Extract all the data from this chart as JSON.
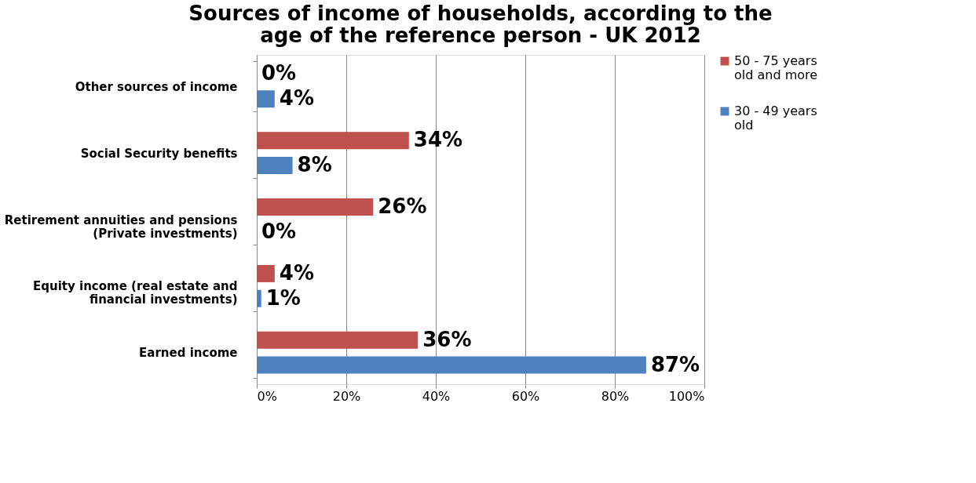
{
  "chart_data": {
    "type": "bar",
    "orientation": "horizontal",
    "title": "Sources of income of households, according to the age of the reference person - UK 2012",
    "categories": [
      "Other sources of income",
      "Social Security benefits",
      "Retirement annuities and pensions (Private investments)",
      "Equity income (real estate and financial investments)",
      "Earned income"
    ],
    "series": [
      {
        "name": "50 - 75 years old and more",
        "color": "#c0504d",
        "values": [
          0,
          34,
          26,
          4,
          36
        ],
        "value_labels": [
          "0%",
          "34%",
          "26%",
          "4%",
          "36%"
        ]
      },
      {
        "name": "30 - 49 years old",
        "color": "#4f81bd",
        "values": [
          4,
          8,
          0,
          1,
          87
        ],
        "value_labels": [
          "4%",
          "8%",
          "0%",
          "1%",
          "87%"
        ]
      }
    ],
    "xlim": [
      0,
      100
    ],
    "xticks": [
      {
        "value": 0,
        "label": "0%"
      },
      {
        "value": 20,
        "label": "20%"
      },
      {
        "value": 40,
        "label": "40%"
      },
      {
        "value": 60,
        "label": "60%"
      },
      {
        "value": 80,
        "label": "80%"
      },
      {
        "value": 100,
        "label": "100%"
      }
    ],
    "grid": "x",
    "legend": "right"
  }
}
